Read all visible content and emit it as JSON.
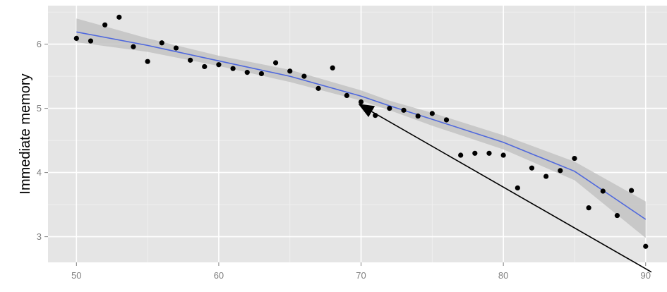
{
  "chart_data": {
    "type": "scatter",
    "title": "",
    "xlabel": "",
    "ylabel": "Immediate memory",
    "xlim": [
      48,
      91.5
    ],
    "ylim": [
      2.6,
      6.6
    ],
    "xticks": [
      50,
      60,
      70,
      80,
      90
    ],
    "yticks": [
      3,
      4,
      5,
      6
    ],
    "x_minor": [
      55,
      65,
      75,
      85
    ],
    "y_minor": [
      3.5,
      4.5,
      5.5,
      6.5
    ],
    "grid": true,
    "legend": "none",
    "colors": {
      "panel": "#e5e5e5",
      "grid": "#ffffff",
      "points": "#000000",
      "smooth_line": "#4f68dd",
      "ribbon": "#bdbdbd",
      "arrow": "#000000",
      "tick_text": "#7f7f7f"
    },
    "points": [
      {
        "x": 50,
        "y": 6.09
      },
      {
        "x": 51,
        "y": 6.05
      },
      {
        "x": 52,
        "y": 6.3
      },
      {
        "x": 53,
        "y": 6.42
      },
      {
        "x": 54,
        "y": 5.96
      },
      {
        "x": 55,
        "y": 5.73
      },
      {
        "x": 56,
        "y": 6.02
      },
      {
        "x": 57,
        "y": 5.94
      },
      {
        "x": 58,
        "y": 5.75
      },
      {
        "x": 59,
        "y": 5.65
      },
      {
        "x": 60,
        "y": 5.68
      },
      {
        "x": 61,
        "y": 5.62
      },
      {
        "x": 62,
        "y": 5.56
      },
      {
        "x": 63,
        "y": 5.54
      },
      {
        "x": 64,
        "y": 5.71
      },
      {
        "x": 65,
        "y": 5.58
      },
      {
        "x": 66,
        "y": 5.5
      },
      {
        "x": 67,
        "y": 5.31
      },
      {
        "x": 68,
        "y": 5.63
      },
      {
        "x": 69,
        "y": 5.2
      },
      {
        "x": 70,
        "y": 5.1
      },
      {
        "x": 71,
        "y": 4.89
      },
      {
        "x": 72,
        "y": 5.0
      },
      {
        "x": 73,
        "y": 4.97
      },
      {
        "x": 74,
        "y": 4.88
      },
      {
        "x": 75,
        "y": 4.92
      },
      {
        "x": 76,
        "y": 4.82
      },
      {
        "x": 77,
        "y": 4.27
      },
      {
        "x": 78,
        "y": 4.3
      },
      {
        "x": 79,
        "y": 4.3
      },
      {
        "x": 80,
        "y": 4.27
      },
      {
        "x": 81,
        "y": 3.76
      },
      {
        "x": 82,
        "y": 4.07
      },
      {
        "x": 83,
        "y": 3.94
      },
      {
        "x": 84,
        "y": 4.03
      },
      {
        "x": 85,
        "y": 4.22
      },
      {
        "x": 86,
        "y": 3.45
      },
      {
        "x": 87,
        "y": 3.71
      },
      {
        "x": 88,
        "y": 3.33
      },
      {
        "x": 89,
        "y": 3.72
      },
      {
        "x": 90,
        "y": 2.85
      }
    ],
    "smooth": {
      "x": [
        50,
        55,
        60,
        65,
        70,
        72,
        75,
        80,
        85,
        90
      ],
      "y": [
        6.19,
        5.98,
        5.74,
        5.5,
        5.19,
        5.04,
        4.83,
        4.47,
        4.02,
        3.27
      ],
      "lower": [
        6.03,
        5.88,
        5.66,
        5.41,
        5.12,
        4.97,
        4.73,
        4.36,
        3.88,
        2.98
      ],
      "upper": [
        6.4,
        6.09,
        5.82,
        5.6,
        5.28,
        5.12,
        4.93,
        4.58,
        4.17,
        3.55
      ]
    },
    "annotations": [
      {
        "type": "arrow",
        "from": {
          "x": 90.4,
          "y": 2.45
        },
        "to": {
          "x": 69.8,
          "y": 5.07
        }
      }
    ]
  }
}
